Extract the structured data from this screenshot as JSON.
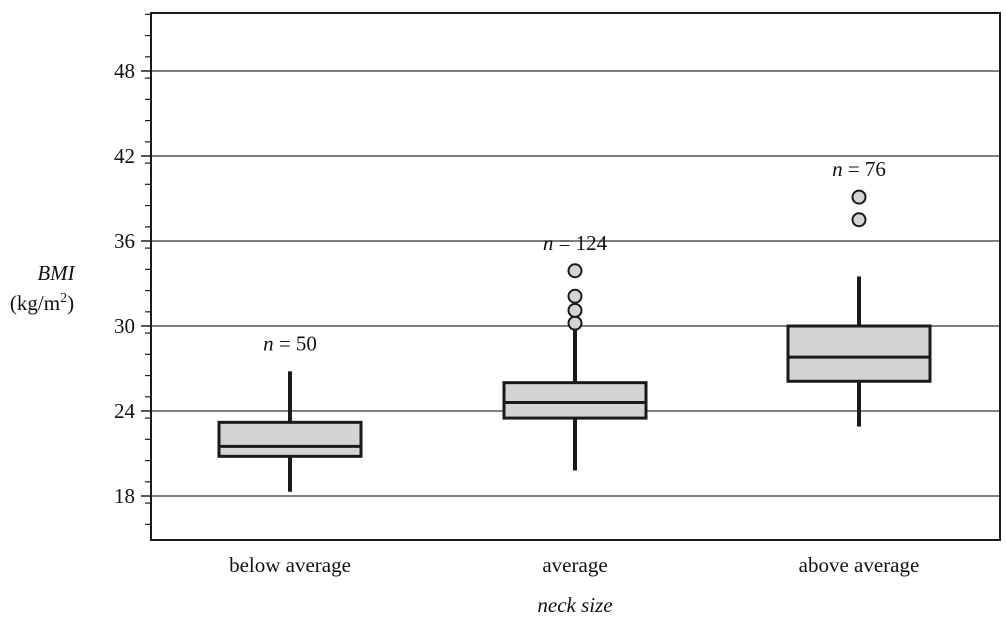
{
  "chart_data": {
    "type": "boxplot",
    "xlabel": "neck size",
    "ylabel": "BMI",
    "ylabel_unit": "(kg/m",
    "ylabel_unit_sup": "2",
    "ylabel_unit_close": ")",
    "ylim": [
      16,
      52
    ],
    "y_major_ticks": [
      18,
      24,
      30,
      36,
      42,
      48
    ],
    "y_minor_step": 1.5,
    "grid": true,
    "categories": [
      "below average",
      "average",
      "above average"
    ],
    "n_prefix": "n",
    "boxes": [
      {
        "category": "below average",
        "n": "= 50",
        "whisker_low": 18.3,
        "q1": 20.8,
        "median": 21.5,
        "q3": 23.2,
        "whisker_high": 26.8,
        "outliers": []
      },
      {
        "category": "average",
        "n": "= 124",
        "whisker_low": 19.8,
        "q1": 23.5,
        "median": 24.6,
        "q3": 26.0,
        "whisker_high": 29.8,
        "outliers": [
          30.2,
          31.1,
          32.1,
          33.9
        ]
      },
      {
        "category": "above average",
        "n": "= 76",
        "whisker_low": 22.9,
        "q1": 26.1,
        "median": 27.8,
        "q3": 30.0,
        "whisker_high": 33.5,
        "outliers": [
          37.5,
          39.1
        ]
      }
    ],
    "colors": {
      "box_fill": "#d4d4d4",
      "stroke": "#1a1a1a",
      "outlier_fill": "#d4d4d4",
      "grid": "#333333"
    }
  }
}
